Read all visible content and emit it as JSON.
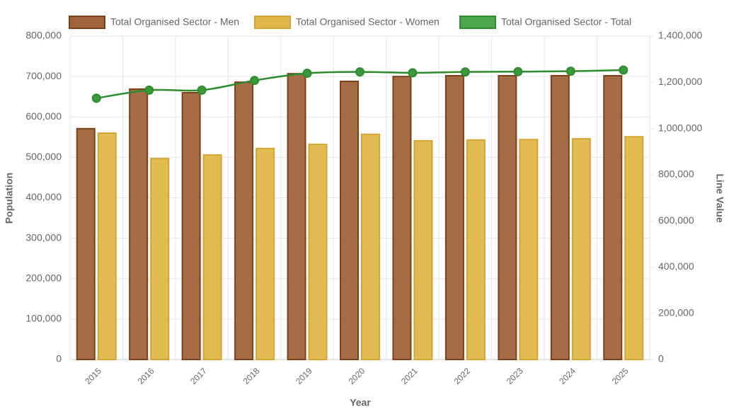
{
  "chart_data": {
    "type": "bar_line",
    "x_label": "Year",
    "y_label": "Population",
    "y2_label": "Line Value",
    "categories": [
      "2015",
      "2016",
      "2017",
      "2018",
      "2019",
      "2020",
      "2021",
      "2022",
      "2023",
      "2024",
      "2025"
    ],
    "series": [
      {
        "name": "Total Organised Sector - Men",
        "type": "bar",
        "color": "#a0643c",
        "border": "#7b4119",
        "values": [
          571000,
          669000,
          660000,
          686000,
          707000,
          688000,
          700000,
          702000,
          702000,
          702000,
          702000
        ]
      },
      {
        "name": "Total Organised Sector - Women",
        "type": "bar",
        "color": "#e0b84a",
        "border": "#d4a532",
        "values": [
          560000,
          497000,
          506000,
          522000,
          532000,
          557000,
          541000,
          543000,
          544000,
          546000,
          551000
        ]
      },
      {
        "name": "Total Organised Sector - Total",
        "type": "line",
        "axis": "y2",
        "color": "#2e8b2e",
        "border": "#2e8b2e",
        "values": [
          1131000,
          1166000,
          1166000,
          1208000,
          1239000,
          1245000,
          1241000,
          1245000,
          1246000,
          1248000,
          1253000
        ]
      }
    ],
    "ylim": [
      0,
      800000
    ],
    "yticks": [
      0,
      {
        "value": 100000,
        "label": "100,000"
      },
      {
        "value": 200000,
        "label": "200,000"
      },
      {
        "value": 300000,
        "label": "300,000"
      },
      {
        "value": 400000,
        "label": "400,000"
      },
      {
        "value": 500000,
        "label": "500,000"
      },
      {
        "value": 600000,
        "label": "600,000"
      },
      {
        "value": 700000,
        "label": "700,000"
      },
      {
        "value": 800000,
        "label": "800,000"
      }
    ],
    "y2lim": [
      0,
      1400000
    ],
    "y2ticks": [
      0,
      {
        "value": 200000,
        "label": "200,000"
      },
      {
        "value": 400000,
        "label": "400,000"
      },
      {
        "value": 600000,
        "label": "600,000"
      },
      {
        "value": 800000,
        "label": "800,000"
      },
      {
        "value": 1000000,
        "label": "1,000,000"
      },
      {
        "value": 1200000,
        "label": "1,200,000"
      },
      {
        "value": 1400000,
        "label": "1,400,000"
      }
    ],
    "grid": true
  }
}
